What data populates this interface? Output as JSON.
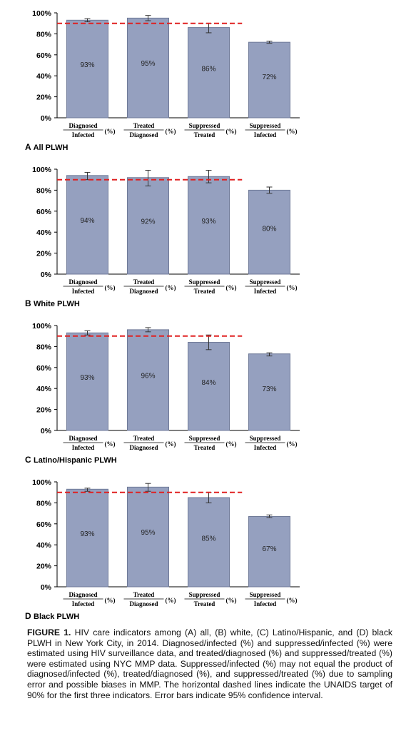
{
  "colors": {
    "bar": "#95a0bf",
    "bar_stroke": "#6f7a98",
    "target_line": "#e02020",
    "axis": "#000000"
  },
  "caption": {
    "label": "FIGURE 1.",
    "text": "HIV care indicators among (A) all, (B) white, (C) Latino/Hispanic, and (D) black PLWH in New York City, in 2014. Diagnosed/infected (%) and suppressed/infected (%) were estimated using HIV surveillance data, and treated/diagnosed (%) and suppressed/treated (%) were estimated using NYC MMP data. Suppressed/infected (%) may not equal the product of diagnosed/infected (%), treated/diagnosed (%), and suppressed/treated (%) due to sampling error and possible biases in MMP. The horizontal dashed lines indicate the UNAIDS target of 90% for the first three indicators. Error bars indicate 95% confidence interval."
  },
  "chart_data": [
    {
      "type": "bar",
      "panel": "A",
      "title": "All PLWH",
      "categories": [
        {
          "num": "Diagnosed",
          "den": "Infected",
          "unit": "(%)"
        },
        {
          "num": "Treated",
          "den": "Diagnosed",
          "unit": "(%)"
        },
        {
          "num": "Suppressed",
          "den": "Treated",
          "unit": "(%)"
        },
        {
          "num": "Suppressed",
          "den": "Infected",
          "unit": "(%)"
        }
      ],
      "values": [
        93,
        95,
        86,
        72
      ],
      "value_labels": [
        "93%",
        "95%",
        "86%",
        "72%"
      ],
      "error_low": [
        91.5,
        92.5,
        81,
        71
      ],
      "error_high": [
        94.5,
        97.5,
        90,
        73
      ],
      "target": 90,
      "ylim": [
        0,
        100
      ],
      "yticks": [
        "0%",
        "20%",
        "40%",
        "60%",
        "80%",
        "100%"
      ]
    },
    {
      "type": "bar",
      "panel": "B",
      "title": "White PLWH",
      "categories": [
        {
          "num": "Diagnosed",
          "den": "Infected",
          "unit": "(%)"
        },
        {
          "num": "Treated",
          "den": "Diagnosed",
          "unit": "(%)"
        },
        {
          "num": "Suppressed",
          "den": "Treated",
          "unit": "(%)"
        },
        {
          "num": "Suppressed",
          "den": "Infected",
          "unit": "(%)"
        }
      ],
      "values": [
        94,
        92,
        93,
        80
      ],
      "value_labels": [
        "94%",
        "92%",
        "93%",
        "80%"
      ],
      "error_low": [
        90,
        84,
        87,
        77
      ],
      "error_high": [
        97,
        99,
        99,
        83
      ],
      "target": 90,
      "ylim": [
        0,
        100
      ],
      "yticks": [
        "0%",
        "20%",
        "40%",
        "60%",
        "80%",
        "100%"
      ]
    },
    {
      "type": "bar",
      "panel": "C",
      "title": "Latino/Hispanic PLWH",
      "categories": [
        {
          "num": "Diagnosed",
          "den": "Infected",
          "unit": "(%)"
        },
        {
          "num": "Treated",
          "den": "Diagnosed",
          "unit": "(%)"
        },
        {
          "num": "Suppressed",
          "den": "Treated",
          "unit": "(%)"
        },
        {
          "num": "Suppressed",
          "den": "Infected",
          "unit": "(%)"
        }
      ],
      "values": [
        93,
        96,
        84,
        73
      ],
      "value_labels": [
        "93%",
        "96%",
        "84%",
        "73%"
      ],
      "error_low": [
        91,
        94,
        77,
        71
      ],
      "error_high": [
        95,
        98,
        91,
        74
      ],
      "target": 90,
      "ylim": [
        0,
        100
      ],
      "yticks": [
        "0%",
        "20%",
        "40%",
        "60%",
        "80%",
        "100%"
      ]
    },
    {
      "type": "bar",
      "panel": "D",
      "title": "Black PLWH",
      "categories": [
        {
          "num": "Diagnosed",
          "den": "Infected",
          "unit": "(%)"
        },
        {
          "num": "Treated",
          "den": "Diagnosed",
          "unit": "(%)"
        },
        {
          "num": "Suppressed",
          "den": "Treated",
          "unit": "(%)"
        },
        {
          "num": "Suppressed",
          "den": "Infected",
          "unit": "(%)"
        }
      ],
      "values": [
        93,
        95,
        85,
        67
      ],
      "value_labels": [
        "93%",
        "95%",
        "85%",
        "67%"
      ],
      "error_low": [
        91,
        91,
        80,
        66
      ],
      "error_high": [
        94,
        98.5,
        90,
        68.5
      ],
      "target": 90,
      "ylim": [
        0,
        100
      ],
      "yticks": [
        "0%",
        "20%",
        "40%",
        "60%",
        "80%",
        "100%"
      ]
    }
  ]
}
